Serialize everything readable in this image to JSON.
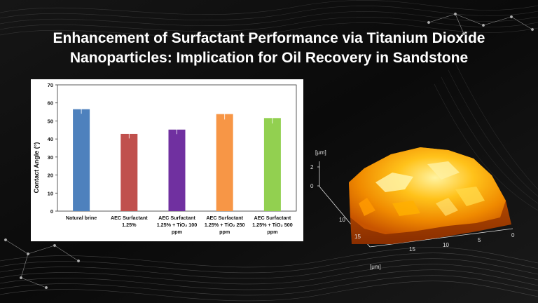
{
  "title": {
    "line1": "Enhancement of Surfactant Performance via Titanium Dioxide",
    "line2": "Nanoparticles: Implication for Oil Recovery in Sandstone"
  },
  "chart_data": {
    "type": "bar",
    "ylabel": "Contact Angle (°)",
    "xlabel": "",
    "ylim": [
      0,
      70
    ],
    "yticks": [
      0,
      10,
      20,
      30,
      40,
      50,
      60,
      70
    ],
    "grid": false,
    "categories": [
      [
        "Natural brine"
      ],
      [
        "AEC Surfactant",
        "1.25%"
      ],
      [
        "AEC Surfactant",
        "1.25% + TiO₂ 100",
        "ppm"
      ],
      [
        "AEC Surfactant",
        "1.25% + TiO₂ 250",
        "ppm"
      ],
      [
        "AEC Surfactant",
        "1.25% + TiO₂ 500",
        "ppm"
      ]
    ],
    "values": [
      56.5,
      42.8,
      45.2,
      53.8,
      51.6
    ],
    "errors": [
      2.5,
      2.5,
      2.5,
      3.0,
      3.0
    ],
    "colors": [
      "#4e81bd",
      "#c0504d",
      "#7030a0",
      "#f79646",
      "#92d050"
    ]
  },
  "afm": {
    "z_label": "[μm]",
    "z_ticks": [
      "2",
      "0"
    ],
    "y_label": "[μm]",
    "y_ticks": [
      "10",
      "15"
    ],
    "x_ticks": [
      "15",
      "10",
      "5",
      "0"
    ]
  },
  "colors": {
    "background": "#0b0b0b",
    "title": "#ffffff"
  }
}
